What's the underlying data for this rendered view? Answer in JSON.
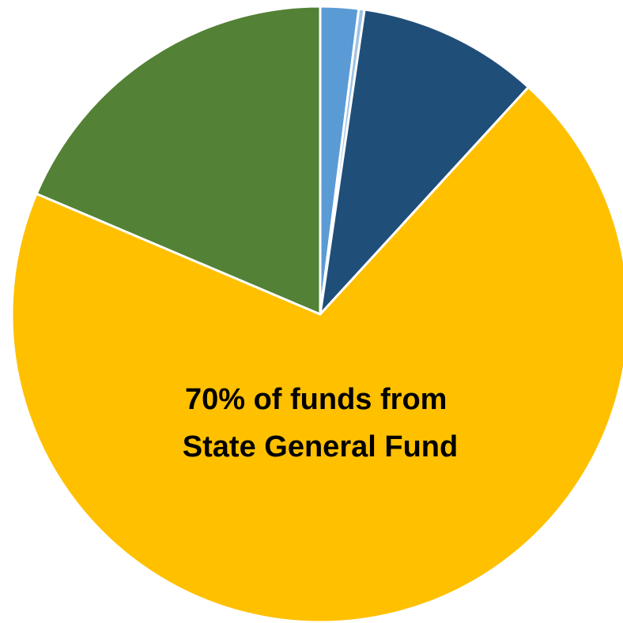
{
  "chart_data": {
    "type": "pie",
    "title": "",
    "slices": [
      {
        "value": 2,
        "color": "#5b9bd5"
      },
      {
        "value": 0.3,
        "color": "#9dc3e6"
      },
      {
        "value": 9.5,
        "color": "#1f4e79"
      },
      {
        "value": 69.6,
        "color": "#ffc000"
      },
      {
        "value": 18.6,
        "color": "#538135"
      }
    ],
    "start_angle_deg": 0,
    "direction": "clockwise",
    "annotation": {
      "lines": [
        "70% of funds from",
        "State General Fund"
      ]
    }
  }
}
